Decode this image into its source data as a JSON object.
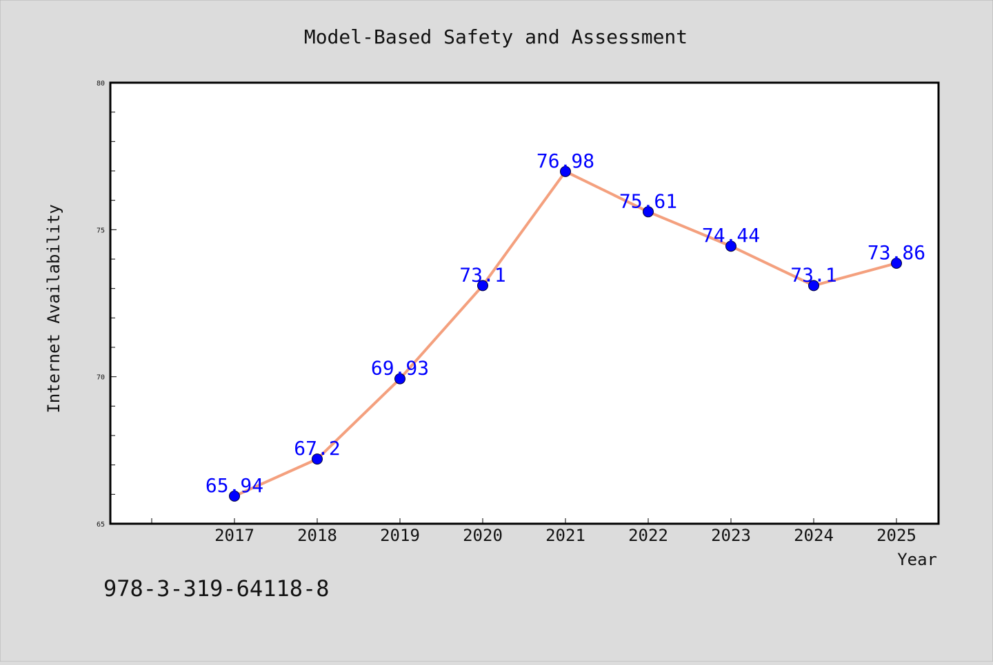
{
  "chart_data": {
    "type": "line",
    "title": "Model-Based Safety and Assessment",
    "xlabel": "Year",
    "ylabel": "Internet Availability",
    "categories": [
      "2017",
      "2018",
      "2019",
      "2020",
      "2021",
      "2022",
      "2023",
      "2024",
      "2025"
    ],
    "series": [
      {
        "values": [
          65.94,
          67.2,
          69.93,
          73.1,
          76.98,
          75.61,
          74.44,
          73.1,
          73.86
        ],
        "data_labels": [
          "65.94",
          "67.2",
          "69.93",
          "73.1",
          "76.98",
          "75.61",
          "74.44",
          "73.1",
          "73.86"
        ]
      }
    ],
    "ylim": [
      65,
      80
    ],
    "yticks": [
      "65",
      "70",
      "75",
      "80"
    ],
    "grid": false,
    "legend": "none",
    "colors": {
      "line": "#f4a07e",
      "marker": "#0000ff",
      "data_label": "#0000ff",
      "background": "#dcdcdc",
      "plot_background": "#ffffff"
    }
  },
  "footer": {
    "isbn": "978-3-319-64118-8"
  }
}
